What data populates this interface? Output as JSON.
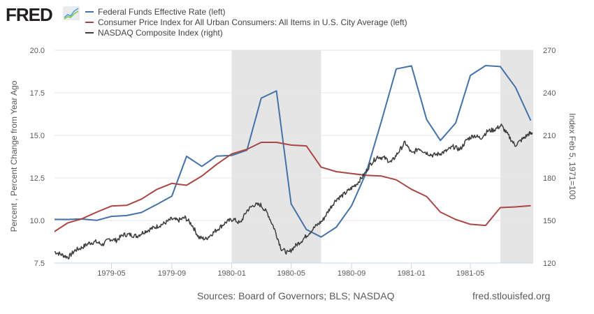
{
  "header": {
    "logo_text": "FRED",
    "logo_icon": "fred-line-graph-icon"
  },
  "footer": {
    "sources": "Sources: Board of Governors; BLS; NASDAQ",
    "url": "fred.stlouisfed.org"
  },
  "chart_data": {
    "type": "line",
    "title": "",
    "legend_position": "top-left",
    "legend": [
      {
        "name": "Federal Funds Effective Rate (left)",
        "color": "#4572a7"
      },
      {
        "name": "Consumer Price Index for All Urban Consumers: All Items in U.S. City Average (left)",
        "color": "#aa4643"
      },
      {
        "name": "NASDAQ Composite Index (right)",
        "color": "#3d3d3d"
      }
    ],
    "xlabel": "",
    "ylabel_left": "Percent , Percent Change from Year Ago",
    "ylabel_right": "Index Feb 5, 1971=100",
    "x_range": [
      "1979-01-05",
      "1981-09-06"
    ],
    "x_ticks": [
      "1979-05",
      "1979-09",
      "1980-01",
      "1980-05",
      "1980-09",
      "1981-01",
      "1981-05"
    ],
    "ylim_left": [
      7.5,
      20.0
    ],
    "y_ticks_left": [
      "7.5",
      "10.0",
      "12.5",
      "15.0",
      "17.5",
      "20.0"
    ],
    "ylim_right": [
      120,
      270
    ],
    "y_ticks_right": [
      "120",
      "150",
      "180",
      "210",
      "240",
      "270"
    ],
    "grid": true,
    "recessions": [
      {
        "start": "1980-01-01",
        "end": "1980-07-01"
      },
      {
        "start": "1981-07-01",
        "end": "1981-09-06"
      }
    ],
    "series": [
      {
        "name": "Federal Funds Effective Rate",
        "axis": "left",
        "color": "#4572a7",
        "x": [
          "1979-01",
          "1979-02",
          "1979-03",
          "1979-04",
          "1979-05",
          "1979-06",
          "1979-07",
          "1979-08",
          "1979-09",
          "1979-10",
          "1979-11",
          "1979-12",
          "1980-01",
          "1980-02",
          "1980-03",
          "1980-04",
          "1980-05",
          "1980-06",
          "1980-07",
          "1980-08",
          "1980-09",
          "1980-10",
          "1980-11",
          "1980-12",
          "1981-01",
          "1981-02",
          "1981-03",
          "1981-04",
          "1981-05",
          "1981-06",
          "1981-07",
          "1981-08",
          "1981-09"
        ],
        "values": [
          10.07,
          10.06,
          10.09,
          10.01,
          10.24,
          10.29,
          10.47,
          10.94,
          11.43,
          13.77,
          13.18,
          13.78,
          13.82,
          14.13,
          17.19,
          17.61,
          10.98,
          9.47,
          9.03,
          9.61,
          10.87,
          12.81,
          15.85,
          18.9,
          19.08,
          15.93,
          14.7,
          15.72,
          18.52,
          19.1,
          19.04,
          17.82,
          15.87
        ]
      },
      {
        "name": "Consumer Price Index for All Urban Consumers: All Items in U.S. City Average",
        "axis": "left",
        "color": "#aa4643",
        "x": [
          "1979-01",
          "1979-02",
          "1979-03",
          "1979-04",
          "1979-05",
          "1979-06",
          "1979-07",
          "1979-08",
          "1979-09",
          "1979-10",
          "1979-11",
          "1979-12",
          "1980-01",
          "1980-02",
          "1980-03",
          "1980-04",
          "1980-05",
          "1980-06",
          "1980-07",
          "1980-08",
          "1980-09",
          "1980-10",
          "1980-11",
          "1980-12",
          "1981-01",
          "1981-02",
          "1981-03",
          "1981-04",
          "1981-05",
          "1981-06",
          "1981-07",
          "1981-08",
          "1981-09"
        ],
        "values": [
          9.28,
          9.86,
          10.09,
          10.49,
          10.85,
          10.89,
          11.26,
          11.82,
          12.18,
          12.07,
          12.61,
          13.29,
          13.91,
          14.18,
          14.59,
          14.59,
          14.43,
          14.38,
          13.13,
          12.87,
          12.76,
          12.65,
          12.61,
          12.39,
          11.83,
          11.41,
          10.49,
          10.06,
          9.78,
          9.71,
          10.76,
          10.8,
          10.87
        ]
      },
      {
        "name": "NASDAQ Composite Index",
        "axis": "right",
        "color": "#3d3d3d",
        "x": [
          "1979-01-05",
          "1979-01-19",
          "1979-02-02",
          "1979-02-16",
          "1979-03-02",
          "1979-03-16",
          "1979-03-30",
          "1979-04-13",
          "1979-04-27",
          "1979-05-11",
          "1979-05-25",
          "1979-06-08",
          "1979-06-22",
          "1979-07-06",
          "1979-07-20",
          "1979-08-03",
          "1979-08-17",
          "1979-08-31",
          "1979-09-14",
          "1979-09-28",
          "1979-10-12",
          "1979-10-26",
          "1979-11-09",
          "1979-11-23",
          "1979-12-07",
          "1979-12-21",
          "1980-01-04",
          "1980-01-18",
          "1980-02-01",
          "1980-02-15",
          "1980-02-29",
          "1980-03-14",
          "1980-03-28",
          "1980-04-11",
          "1980-04-25",
          "1980-05-09",
          "1980-05-23",
          "1980-06-06",
          "1980-06-20",
          "1980-07-04",
          "1980-07-18",
          "1980-08-01",
          "1980-08-15",
          "1980-08-29",
          "1980-09-12",
          "1980-09-26",
          "1980-10-10",
          "1980-10-24",
          "1980-11-07",
          "1980-11-21",
          "1980-12-05",
          "1980-12-19",
          "1981-01-02",
          "1981-01-16",
          "1981-01-30",
          "1981-02-13",
          "1981-02-27",
          "1981-03-13",
          "1981-03-27",
          "1981-04-10",
          "1981-04-24",
          "1981-05-08",
          "1981-05-22",
          "1981-06-05",
          "1981-06-19",
          "1981-07-03",
          "1981-07-17",
          "1981-07-31",
          "1981-08-14",
          "1981-08-28",
          "1981-09-04"
        ],
        "values": [
          128,
          126,
          124,
          129,
          131,
          134,
          135,
          133,
          137,
          136,
          140,
          140,
          139,
          142,
          144,
          146,
          148,
          151,
          150,
          152,
          147,
          138,
          137,
          141,
          145,
          149,
          151,
          148,
          157,
          161,
          161,
          155,
          144,
          130,
          127,
          132,
          136,
          141,
          146,
          150,
          158,
          165,
          168,
          172,
          176,
          182,
          190,
          195,
          194,
          191,
          198,
          205,
          197,
          201,
          198,
          196,
          197,
          199,
          202,
          200,
          207,
          210,
          208,
          213,
          214,
          217,
          210,
          203,
          207,
          211,
          212
        ]
      }
    ]
  }
}
